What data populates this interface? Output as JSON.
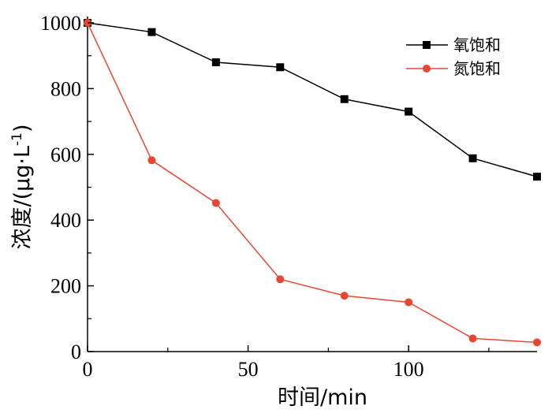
{
  "chart_data": {
    "type": "line",
    "title": "",
    "xlabel": "时间/min",
    "ylabel_parts": {
      "text": "浓度/(μg·L",
      "superscript": "-1",
      "close": ")"
    },
    "xlim": [
      0,
      140
    ],
    "ylim": [
      0,
      1000
    ],
    "xticks": [
      0,
      50,
      100
    ],
    "yticks": [
      0,
      200,
      400,
      600,
      800,
      1000
    ],
    "legend_position": "top-right",
    "series": [
      {
        "name": "氧饱和",
        "color": "#000000",
        "marker": "square",
        "x": [
          0,
          20,
          40,
          60,
          80,
          100,
          120,
          140
        ],
        "y": [
          1000,
          972,
          880,
          865,
          768,
          730,
          588,
          532
        ]
      },
      {
        "name": "氮饱和",
        "color": "#e8472f",
        "marker": "circle",
        "x": [
          0,
          20,
          40,
          60,
          80,
          100,
          120,
          140
        ],
        "y": [
          1000,
          582,
          452,
          220,
          170,
          150,
          40,
          28
        ]
      }
    ]
  }
}
